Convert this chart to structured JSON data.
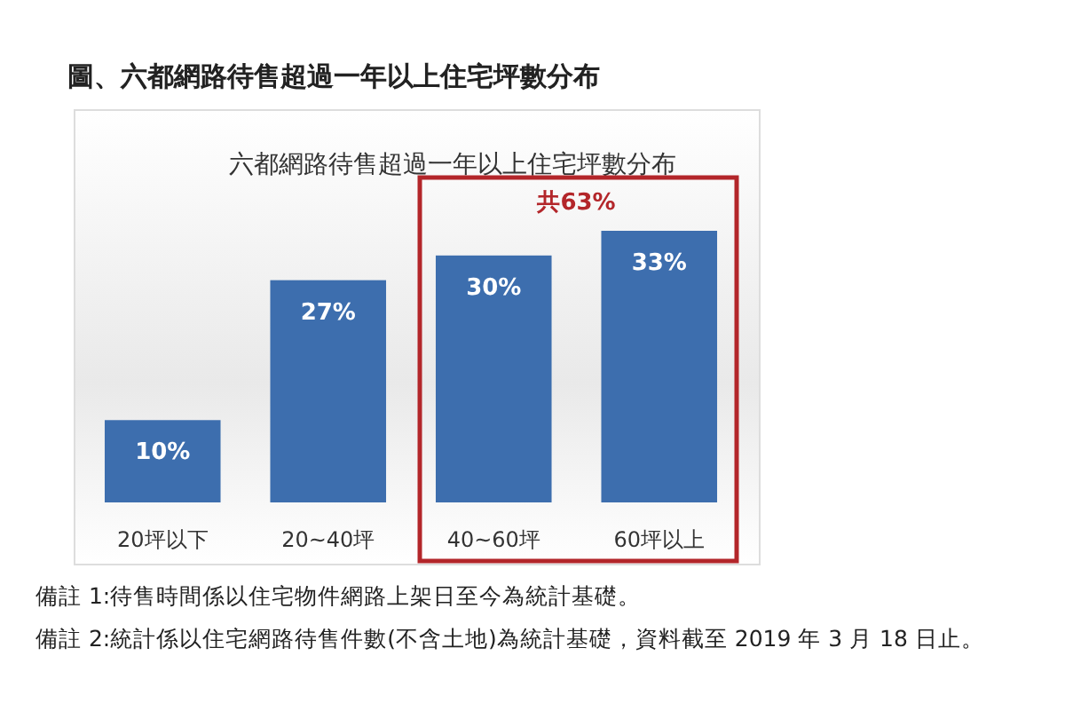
{
  "chart_data": {
    "type": "bar",
    "title": "圖、六都網路待售超過一年以上住宅坪數分布",
    "subtitle": "六都網路待售超過一年以上住宅坪數分布",
    "categories": [
      "20坪以下",
      "20~40坪",
      "40~60坪",
      "60坪以上"
    ],
    "values": [
      10,
      27,
      30,
      33
    ],
    "value_labels": [
      "10%",
      "27%",
      "30%",
      "33%"
    ],
    "color": "#3d6eae",
    "annotations": [
      {
        "text": "共63%",
        "x": "60坪以上",
        "y": 33
      },
      "備註 1:待售時間係以住宅物件網路上架日至今為統計基礎。",
      "備註 2:統計係以住宅網路待售件數(不含土地)為統計基礎，資料截至 2019 年 3 月 18 日止。"
    ]
  }
}
